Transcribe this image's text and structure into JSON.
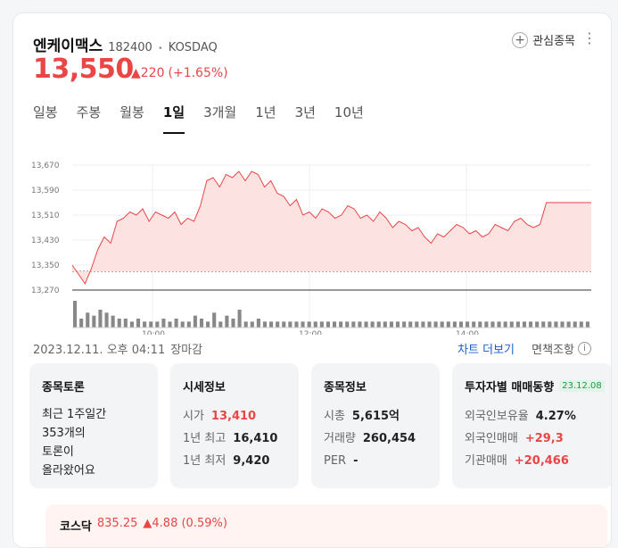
{
  "stock": {
    "name": "엔케이맥스",
    "code": "182400",
    "market": "KOSDAQ",
    "price": "13,550",
    "change_abs": "▲220",
    "change_pct": "(+1.65%)"
  },
  "header": {
    "favorite_label": "관심종목",
    "more_icon": "⋮"
  },
  "tabs": [
    "일봉",
    "주봉",
    "월봉",
    "1일",
    "3개월",
    "1년",
    "3년",
    "10년"
  ],
  "active_tab": "1일",
  "chart_data": {
    "type": "area",
    "y_ticks": [
      "13,670",
      "13,590",
      "13,510",
      "13,430",
      "13,350",
      "13,270"
    ],
    "x_ticks": [
      "10:00",
      "12:00",
      "14:00"
    ],
    "ylim": [
      13270,
      13670
    ],
    "prev_close": 13330,
    "grid": true,
    "series": [
      {
        "values": [
          13350,
          13320,
          13290,
          13340,
          13400,
          13440,
          13420,
          13490,
          13500,
          13520,
          13510,
          13530,
          13490,
          13520,
          13510,
          13500,
          13520,
          13480,
          13500,
          13490,
          13540,
          13620,
          13630,
          13600,
          13640,
          13630,
          13650,
          13620,
          13650,
          13640,
          13600,
          13620,
          13580,
          13570,
          13540,
          13560,
          13510,
          13520,
          13500,
          13530,
          13520,
          13500,
          13510,
          13540,
          13530,
          13500,
          13510,
          13490,
          13520,
          13500,
          13470,
          13490,
          13480,
          13460,
          13470,
          13440,
          13420,
          13450,
          13440,
          13460,
          13480,
          13470,
          13450,
          13460,
          13440,
          13450,
          13480,
          13470,
          13460,
          13490,
          13500,
          13480,
          13470,
          13480,
          13550,
          13550,
          13550,
          13550,
          13550,
          13550,
          13550,
          13550
        ]
      }
    ],
    "volume": [
      9,
      3,
      5,
      4,
      6,
      5,
      4,
      3,
      3,
      2,
      3,
      2,
      2,
      2,
      3,
      2,
      3,
      2,
      2,
      4,
      3,
      2,
      5,
      2,
      4,
      3,
      6,
      2,
      2,
      3,
      2,
      2,
      2,
      2,
      2,
      2,
      2,
      2,
      2,
      2,
      2,
      2,
      2,
      2,
      2,
      2,
      2,
      2,
      2,
      2,
      2,
      2,
      2,
      2,
      2,
      2,
      2,
      2,
      2,
      2,
      2,
      2,
      2,
      2,
      2,
      2,
      2,
      2,
      2,
      2,
      2,
      2,
      2,
      2,
      2,
      2,
      2,
      2,
      2,
      2,
      2,
      2
    ]
  },
  "meta": {
    "datetime": "2023.12.11. 오후 04:11",
    "status": "장마감"
  },
  "links": {
    "chart_more": "차트 더보기",
    "help": "면책조항"
  },
  "boxes": {
    "discussion": {
      "title": "종목토론",
      "text": [
        "최근 1주일간",
        "353개의",
        "토론이",
        "올라왔어요"
      ]
    },
    "price_info": {
      "title": "시세정보",
      "rows": [
        {
          "label": "시가",
          "value": "13,410",
          "red": true
        },
        {
          "label": "1년 최고",
          "value": "16,410"
        },
        {
          "label": "1년 최저",
          "value": "9,420"
        }
      ]
    },
    "stock_info": {
      "title": "종목정보",
      "rows": [
        {
          "label": "시총",
          "value": "5,615억"
        },
        {
          "label": "거래량",
          "value": "260,454"
        },
        {
          "label": "PER",
          "value": "-"
        }
      ]
    },
    "investor": {
      "title": "투자자별 매매동향",
      "tag": "23.12.08",
      "rows": [
        {
          "label": "외국인보유율",
          "value": "4.27%"
        },
        {
          "label": "외국인매매",
          "value": "+29,3",
          "red": true
        },
        {
          "label": "기관매매",
          "value": "+20,466",
          "red": true
        }
      ]
    }
  },
  "kosdaq": {
    "name": "코스닥",
    "value": "835.25",
    "change": "▲4.88 (0.59%)"
  }
}
